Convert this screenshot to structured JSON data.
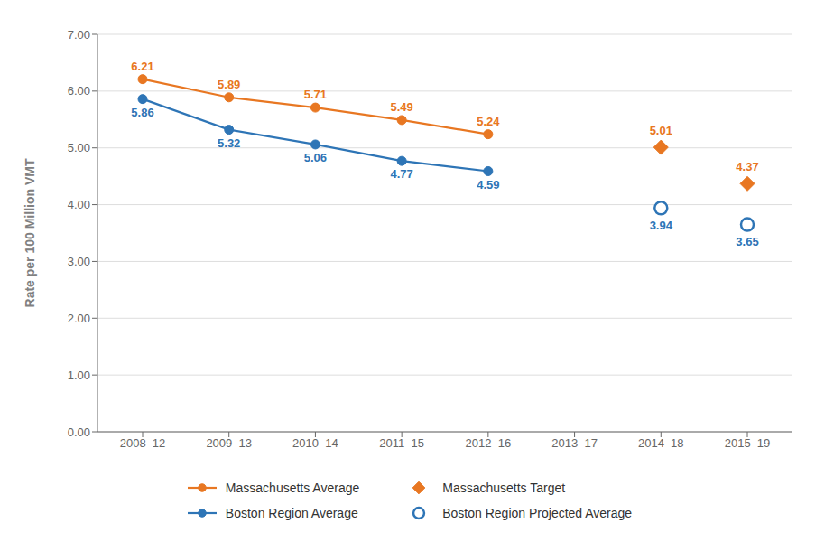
{
  "chart_data": {
    "type": "line",
    "categories": [
      "2008–12",
      "2009–13",
      "2010–14",
      "2011–15",
      "2012–16",
      "2013–17",
      "2014–18",
      "2015–19"
    ],
    "ylabel": "Rate per 100 Million VMT",
    "ylim": [
      0.0,
      7.0
    ],
    "yticks": [
      {
        "value": 0.0,
        "label": "0.00"
      },
      {
        "value": 1.0,
        "label": "1.00"
      },
      {
        "value": 2.0,
        "label": "2.00"
      },
      {
        "value": 3.0,
        "label": "3.00"
      },
      {
        "value": 4.0,
        "label": "4.00"
      },
      {
        "value": 5.0,
        "label": "5.00"
      },
      {
        "value": 6.0,
        "label": "6.00"
      },
      {
        "value": 7.0,
        "label": "7.00"
      }
    ],
    "grid": true,
    "legend": "bottom",
    "data_labels": true,
    "series": [
      {
        "name": "Massachusetts Average",
        "color": "#E87722",
        "marker": "circle",
        "line_style": "solid",
        "values": [
          6.21,
          5.89,
          5.71,
          5.49,
          5.24,
          null,
          null,
          null
        ]
      },
      {
        "name": "Massachusetts Target",
        "color": "#E87722",
        "marker": "diamond",
        "line_style": "none",
        "values": [
          null,
          null,
          null,
          null,
          null,
          null,
          5.01,
          4.37
        ]
      },
      {
        "name": "Boston Region Average",
        "color": "#2E75B6",
        "marker": "circle",
        "line_style": "solid",
        "values": [
          5.86,
          5.32,
          5.06,
          4.77,
          4.59,
          null,
          null,
          null
        ]
      },
      {
        "name": "Boston Region Projected Average",
        "color": "#2E75B6",
        "marker": "open_circle",
        "line_style": "none",
        "values": [
          null,
          null,
          null,
          null,
          null,
          null,
          3.94,
          3.65
        ]
      }
    ]
  }
}
